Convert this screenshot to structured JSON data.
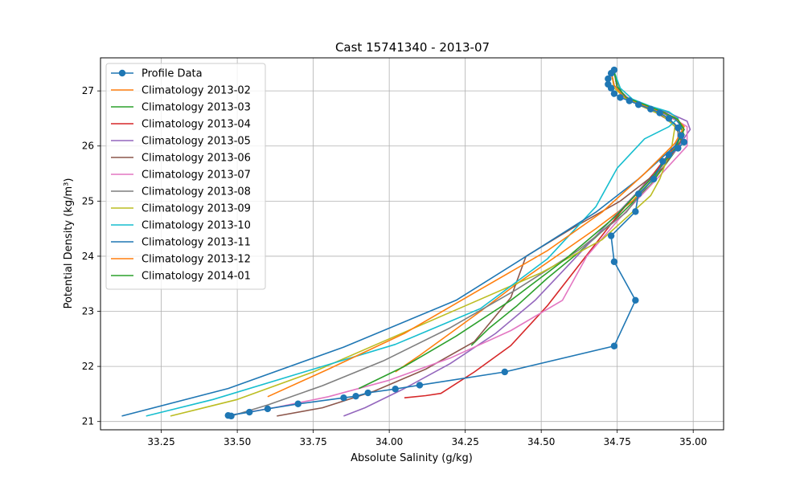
{
  "chart_data": {
    "type": "line",
    "title": "Cast 15741340 - 2013-07",
    "xlabel": "Absolute Salinity (g/kg)",
    "ylabel": "Potential Density (kg/m³)",
    "xlim": [
      33.05,
      35.1
    ],
    "ylim": [
      20.85,
      27.6
    ],
    "xticks": [
      33.25,
      33.5,
      33.75,
      34.0,
      34.25,
      34.5,
      34.75,
      35.0
    ],
    "xtick_labels": [
      "33.25",
      "33.50",
      "33.75",
      "34.00",
      "34.25",
      "34.50",
      "34.75",
      "35.00"
    ],
    "yticks": [
      21,
      22,
      23,
      24,
      25,
      26,
      27
    ],
    "ytick_labels": [
      "21",
      "22",
      "23",
      "24",
      "25",
      "26",
      "27"
    ],
    "grid": true,
    "legend_position": "top-left",
    "series": [
      {
        "name": "Profile Data",
        "color": "#1f77b4",
        "marker": "circle",
        "x": [
          33.48,
          33.47,
          33.54,
          33.6,
          33.7,
          33.85,
          33.89,
          33.93,
          34.02,
          34.1,
          34.38,
          34.74,
          34.81,
          34.74,
          34.73,
          34.81,
          34.82,
          34.87,
          34.9,
          34.92,
          34.95,
          34.97,
          34.96,
          34.95,
          34.92,
          34.89,
          34.86,
          34.82,
          34.79,
          34.76,
          34.74,
          34.73,
          34.72,
          34.72,
          34.73,
          34.74
        ],
        "y": [
          21.1,
          21.11,
          21.17,
          21.23,
          21.32,
          21.43,
          21.46,
          21.52,
          21.59,
          21.66,
          21.9,
          22.37,
          23.2,
          23.9,
          24.37,
          24.81,
          25.13,
          25.4,
          25.72,
          25.84,
          25.96,
          26.07,
          26.19,
          26.33,
          26.5,
          26.6,
          26.67,
          26.75,
          26.82,
          26.88,
          26.95,
          27.05,
          27.12,
          27.22,
          27.32,
          27.38
        ]
      },
      {
        "name": "Climatology 2013-02",
        "color": "#ff7f0e",
        "x": [
          34.02,
          34.1,
          34.2,
          34.3,
          34.42,
          34.55,
          34.68,
          34.8,
          34.9,
          34.96,
          34.94,
          34.88,
          34.82,
          34.77,
          34.74,
          34.73
        ],
        "y": [
          21.9,
          22.2,
          22.6,
          23.0,
          23.5,
          24.0,
          24.5,
          25.0,
          25.6,
          26.1,
          26.4,
          26.6,
          26.75,
          26.9,
          27.1,
          27.35
        ]
      },
      {
        "name": "Climatology 2013-03",
        "color": "#2ca02c",
        "x": [
          34.27,
          34.33,
          34.42,
          34.52,
          34.63,
          34.75,
          34.86,
          34.94,
          34.97,
          34.95,
          34.9,
          34.84,
          34.78,
          34.75,
          34.74
        ],
        "y": [
          22.38,
          22.7,
          23.1,
          23.6,
          24.1,
          24.7,
          25.3,
          25.9,
          26.2,
          26.45,
          26.6,
          26.72,
          26.85,
          27.05,
          27.35
        ]
      },
      {
        "name": "Climatology 2013-04",
        "color": "#d62728",
        "x": [
          34.05,
          34.12,
          34.17,
          34.28,
          34.4,
          34.52,
          34.64,
          34.76,
          34.87,
          34.94,
          34.97,
          34.95,
          34.9,
          34.84,
          34.78,
          34.75,
          34.74
        ],
        "y": [
          21.43,
          21.47,
          21.51,
          21.9,
          22.38,
          23.1,
          23.95,
          24.8,
          25.5,
          26.0,
          26.3,
          26.45,
          26.6,
          26.72,
          26.85,
          27.05,
          27.35
        ]
      },
      {
        "name": "Climatology 2013-05",
        "color": "#9467bd",
        "x": [
          33.85,
          33.92,
          34.05,
          34.2,
          34.35,
          34.48,
          34.6,
          34.72,
          34.84,
          34.94,
          34.99,
          34.98,
          34.92,
          34.85,
          34.79,
          34.75,
          34.74
        ],
        "y": [
          21.1,
          21.25,
          21.6,
          22.05,
          22.6,
          23.2,
          23.9,
          24.6,
          25.3,
          25.9,
          26.3,
          26.45,
          26.6,
          26.72,
          26.85,
          27.05,
          27.35
        ]
      },
      {
        "name": "Climatology 2013-06",
        "color": "#8c564b",
        "x": [
          33.63,
          33.78,
          33.95,
          34.12,
          34.28,
          34.4,
          34.45,
          34.6,
          34.76,
          34.9,
          34.96,
          34.94,
          34.88,
          34.82,
          34.77,
          34.74
        ],
        "y": [
          21.1,
          21.25,
          21.55,
          21.95,
          22.45,
          23.25,
          24.0,
          24.5,
          25.0,
          25.6,
          26.1,
          26.4,
          26.6,
          26.75,
          26.9,
          27.3
        ]
      },
      {
        "name": "Climatology 2013-07",
        "color": "#e377c2",
        "x": [
          33.46,
          33.62,
          33.8,
          34.0,
          34.2,
          34.4,
          34.57,
          34.65,
          34.76,
          34.88,
          34.98,
          34.98,
          34.92,
          34.85,
          34.79,
          34.75,
          34.74
        ],
        "y": [
          21.1,
          21.25,
          21.45,
          21.75,
          22.15,
          22.65,
          23.2,
          24.0,
          24.7,
          25.4,
          26.0,
          26.35,
          26.55,
          26.7,
          26.85,
          27.05,
          27.35
        ]
      },
      {
        "name": "Climatology 2013-08",
        "color": "#7f7f7f",
        "x": [
          33.48,
          33.6,
          33.78,
          33.98,
          34.2,
          34.42,
          34.62,
          34.78,
          34.88,
          34.95,
          34.95,
          34.9,
          34.84,
          34.78,
          34.75,
          34.74
        ],
        "y": [
          21.1,
          21.3,
          21.65,
          22.1,
          22.7,
          23.4,
          24.1,
          24.8,
          25.5,
          26.05,
          26.35,
          26.55,
          26.7,
          26.85,
          27.05,
          27.35
        ]
      },
      {
        "name": "Climatology 2013-09",
        "color": "#bcbd22",
        "x": [
          33.28,
          33.5,
          33.75,
          34.0,
          34.25,
          34.5,
          34.7,
          34.86,
          34.89,
          34.93,
          34.94,
          34.9,
          34.84,
          34.78,
          34.74,
          34.73
        ],
        "y": [
          21.1,
          21.4,
          21.9,
          22.5,
          23.1,
          23.7,
          24.3,
          25.1,
          25.4,
          26.0,
          26.35,
          26.55,
          26.7,
          26.85,
          27.05,
          27.35
        ]
      },
      {
        "name": "Climatology 2013-10",
        "color": "#17becf",
        "x": [
          33.2,
          33.42,
          33.72,
          34.02,
          34.3,
          34.52,
          34.68,
          34.75,
          34.84,
          34.92,
          34.95,
          34.92,
          34.86,
          34.8,
          34.76,
          34.74
        ],
        "y": [
          21.1,
          21.4,
          21.9,
          22.4,
          23.05,
          23.95,
          24.9,
          25.6,
          26.13,
          26.35,
          26.5,
          26.62,
          26.72,
          26.85,
          27.05,
          27.35
        ]
      },
      {
        "name": "Climatology 2013-11",
        "color": "#1f77b4",
        "x": [
          33.12,
          33.47,
          33.85,
          34.22,
          34.48,
          34.68,
          34.82,
          34.94,
          34.97,
          34.94,
          34.88,
          34.82,
          34.77,
          34.74,
          34.73
        ],
        "y": [
          21.1,
          21.6,
          22.35,
          23.2,
          24.1,
          24.8,
          25.4,
          26.0,
          26.3,
          26.5,
          26.65,
          26.78,
          26.9,
          27.1,
          27.35
        ]
      },
      {
        "name": "Climatology 2013-12",
        "color": "#ff7f0e",
        "x": [
          33.6,
          33.8,
          34.05,
          34.3,
          34.52,
          34.7,
          34.84,
          34.94,
          34.97,
          34.94,
          34.88,
          34.82,
          34.77,
          34.74,
          34.73
        ],
        "y": [
          21.45,
          21.95,
          22.6,
          23.4,
          24.1,
          24.8,
          25.5,
          26.05,
          26.35,
          26.52,
          26.65,
          26.78,
          26.9,
          27.1,
          27.35
        ]
      },
      {
        "name": "Climatology 2014-01",
        "color": "#2ca02c",
        "x": [
          33.9,
          34.05,
          34.22,
          34.4,
          34.58,
          34.74,
          34.86,
          34.94,
          34.97,
          34.95,
          34.9,
          34.84,
          34.78,
          34.75,
          34.74
        ],
        "y": [
          21.6,
          22.0,
          22.55,
          23.2,
          23.95,
          24.7,
          25.4,
          25.95,
          26.3,
          26.48,
          26.62,
          26.75,
          26.88,
          27.08,
          27.35
        ]
      }
    ]
  }
}
